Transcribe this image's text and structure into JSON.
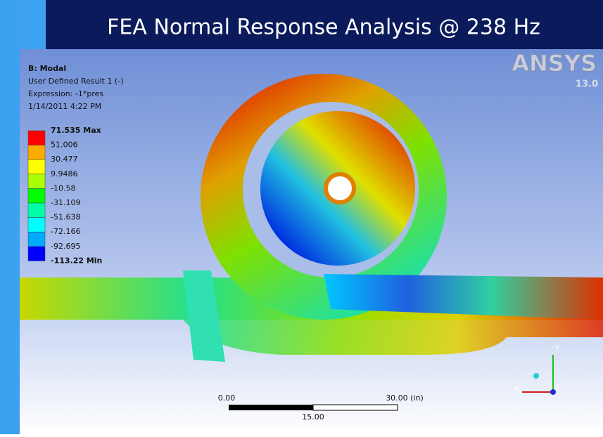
{
  "header": {
    "title": "FEA Normal Response Analysis @ 238 Hz"
  },
  "info": {
    "name": "B: Modal",
    "result": "User Defined Result 1 (-)",
    "expression": "Expression: -1*pres",
    "date": "1/14/2011 4:22 PM"
  },
  "legend": {
    "labels": [
      "71.535 Max",
      "51.006",
      "30.477",
      "9.9486",
      "-10.58",
      "-31.109",
      "-51.638",
      "-72.166",
      "-92.695",
      "-113.22 Min"
    ],
    "colors": [
      "#ff0000",
      "#ffaa00",
      "#ffff00",
      "#aaff00",
      "#00ff00",
      "#00ffaa",
      "#00ffff",
      "#00aaff",
      "#0000ff"
    ]
  },
  "logo": {
    "brand": "ANSYS",
    "version": "13.0"
  },
  "scale_bar": {
    "start": "0.00",
    "end": "30.00 (in)",
    "mid": "15.00"
  },
  "triad": {
    "x": "X",
    "y": "Y",
    "z": "Z"
  }
}
